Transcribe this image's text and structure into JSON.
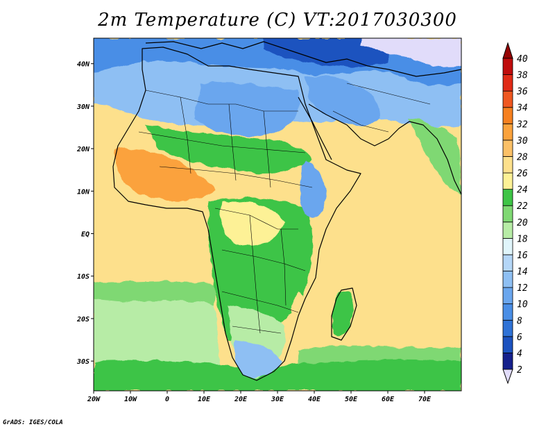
{
  "title": "2m Temperature (C) VT:2017030300",
  "credit": "GrADS: IGES/COLA",
  "map": {
    "lon_range": [
      -20,
      80
    ],
    "lat_range": [
      -37,
      46
    ],
    "lon_ticks": [
      {
        "value": -20,
        "label": "20W"
      },
      {
        "value": -10,
        "label": "10W"
      },
      {
        "value": 0,
        "label": "0"
      },
      {
        "value": 10,
        "label": "10E"
      },
      {
        "value": 20,
        "label": "20E"
      },
      {
        "value": 30,
        "label": "30E"
      },
      {
        "value": 40,
        "label": "40E"
      },
      {
        "value": 50,
        "label": "50E"
      },
      {
        "value": 60,
        "label": "60E"
      },
      {
        "value": 70,
        "label": "70E"
      }
    ],
    "lat_ticks": [
      {
        "value": 40,
        "label": "40N"
      },
      {
        "value": 30,
        "label": "30N"
      },
      {
        "value": 20,
        "label": "20N"
      },
      {
        "value": 10,
        "label": "10N"
      },
      {
        "value": 0,
        "label": "EQ"
      },
      {
        "value": -10,
        "label": "10S"
      },
      {
        "value": -20,
        "label": "20S"
      },
      {
        "value": -30,
        "label": "30S"
      }
    ]
  },
  "colorbar": {
    "levels": [
      2,
      4,
      6,
      8,
      10,
      12,
      14,
      16,
      18,
      20,
      22,
      24,
      26,
      28,
      30,
      32,
      34,
      36,
      38,
      40
    ],
    "labels": [
      "2",
      "4",
      "6",
      "8",
      "10",
      "12",
      "14",
      "16",
      "18",
      "20",
      "22",
      "24",
      "26",
      "28",
      "30",
      "32",
      "34",
      "36",
      "38",
      "40"
    ],
    "colors": [
      "#e1dcfa",
      "#15208c",
      "#1c52bf",
      "#2f72d6",
      "#4a8ee6",
      "#6aa6ee",
      "#8ebff3",
      "#b4d6f7",
      "#e0f5fb",
      "#b7eca6",
      "#7fd873",
      "#3ec446",
      "#fdf196",
      "#fde08c",
      "#fbc067",
      "#fba23c",
      "#f6801f",
      "#ef5720",
      "#e02a16",
      "#bf0c0c",
      "#960404"
    ]
  }
}
